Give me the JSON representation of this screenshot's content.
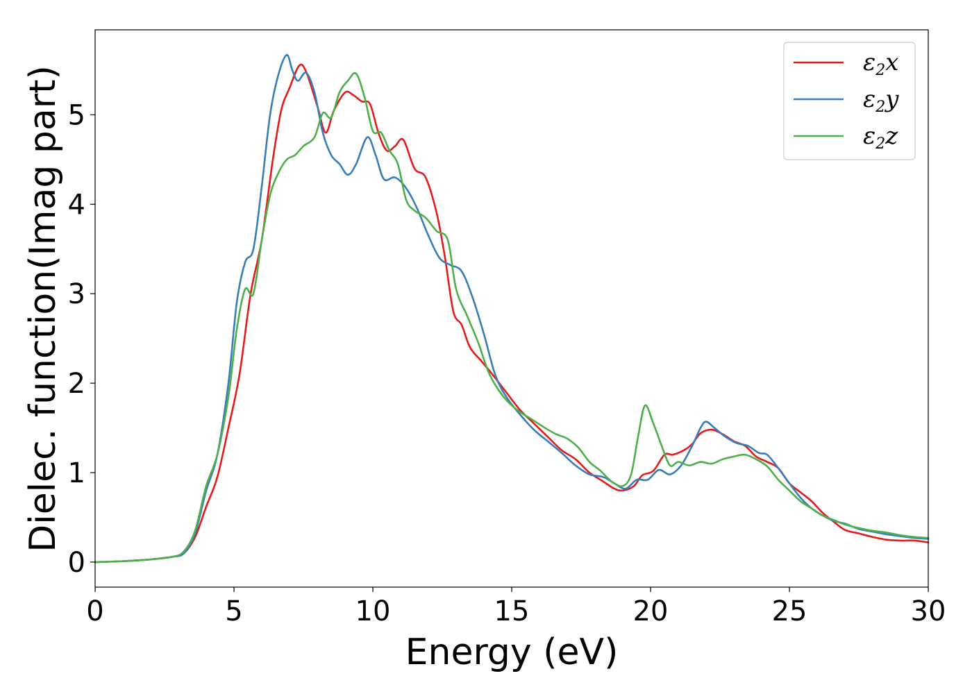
{
  "chart_data": {
    "type": "line",
    "xlabel": "Energy (eV)",
    "ylabel": "Dielec. function(Imag part)",
    "xlim": [
      0,
      30
    ],
    "ylim": [
      -0.28,
      5.95
    ],
    "xticks": [
      0,
      5,
      10,
      15,
      20,
      25,
      30
    ],
    "yticks": [
      0,
      1,
      2,
      3,
      4,
      5
    ],
    "grid": false,
    "legend_position": "top-right",
    "series": [
      {
        "name": "ε2x",
        "legend": {
          "base": "ε",
          "sub": "2",
          "suffix": "x"
        },
        "color": "#e41a1c",
        "points": [
          [
            0,
            0
          ],
          [
            1,
            0.01
          ],
          [
            2,
            0.03
          ],
          [
            2.8,
            0.06
          ],
          [
            3.2,
            0.1
          ],
          [
            3.6,
            0.28
          ],
          [
            4.0,
            0.62
          ],
          [
            4.4,
            0.95
          ],
          [
            4.8,
            1.5
          ],
          [
            5.2,
            2.1
          ],
          [
            5.6,
            3.0
          ],
          [
            6.0,
            3.6
          ],
          [
            6.4,
            4.5
          ],
          [
            6.7,
            5.05
          ],
          [
            7.0,
            5.3
          ],
          [
            7.35,
            5.55
          ],
          [
            7.6,
            5.48
          ],
          [
            8.0,
            5.1
          ],
          [
            8.3,
            4.8
          ],
          [
            8.6,
            5.05
          ],
          [
            9.0,
            5.25
          ],
          [
            9.3,
            5.22
          ],
          [
            9.6,
            5.15
          ],
          [
            9.9,
            5.12
          ],
          [
            10.2,
            4.8
          ],
          [
            10.5,
            4.6
          ],
          [
            10.8,
            4.65
          ],
          [
            11.1,
            4.72
          ],
          [
            11.5,
            4.4
          ],
          [
            11.9,
            4.3
          ],
          [
            12.3,
            3.9
          ],
          [
            12.6,
            3.4
          ],
          [
            12.9,
            2.8
          ],
          [
            13.2,
            2.65
          ],
          [
            13.5,
            2.4
          ],
          [
            13.9,
            2.25
          ],
          [
            14.3,
            2.1
          ],
          [
            14.8,
            1.9
          ],
          [
            15.3,
            1.7
          ],
          [
            15.8,
            1.55
          ],
          [
            16.3,
            1.4
          ],
          [
            16.8,
            1.25
          ],
          [
            17.3,
            1.15
          ],
          [
            17.8,
            1.0
          ],
          [
            18.3,
            0.9
          ],
          [
            18.7,
            0.82
          ],
          [
            19.0,
            0.8
          ],
          [
            19.4,
            0.85
          ],
          [
            19.7,
            0.97
          ],
          [
            20.1,
            1.02
          ],
          [
            20.5,
            1.2
          ],
          [
            20.8,
            1.2
          ],
          [
            21.2,
            1.25
          ],
          [
            21.5,
            1.32
          ],
          [
            21.8,
            1.44
          ],
          [
            22.2,
            1.48
          ],
          [
            22.6,
            1.43
          ],
          [
            23.0,
            1.35
          ],
          [
            23.4,
            1.3
          ],
          [
            23.8,
            1.18
          ],
          [
            24.2,
            1.12
          ],
          [
            24.6,
            1.05
          ],
          [
            25.0,
            0.88
          ],
          [
            25.4,
            0.78
          ],
          [
            25.8,
            0.68
          ],
          [
            26.2,
            0.55
          ],
          [
            26.6,
            0.45
          ],
          [
            27.0,
            0.36
          ],
          [
            27.5,
            0.32
          ],
          [
            28.0,
            0.28
          ],
          [
            28.5,
            0.25
          ],
          [
            29.0,
            0.24
          ],
          [
            29.5,
            0.24
          ],
          [
            30.0,
            0.22
          ]
        ]
      },
      {
        "name": "ε2y",
        "legend": {
          "base": "ε",
          "sub": "2",
          "suffix": "y"
        },
        "color": "#377eb8",
        "points": [
          [
            0,
            0
          ],
          [
            1,
            0.01
          ],
          [
            2,
            0.03
          ],
          [
            2.8,
            0.06
          ],
          [
            3.2,
            0.1
          ],
          [
            3.6,
            0.32
          ],
          [
            4.0,
            0.8
          ],
          [
            4.4,
            1.2
          ],
          [
            4.8,
            2.0
          ],
          [
            5.1,
            2.9
          ],
          [
            5.4,
            3.35
          ],
          [
            5.7,
            3.5
          ],
          [
            6.0,
            4.2
          ],
          [
            6.3,
            5.0
          ],
          [
            6.6,
            5.45
          ],
          [
            6.9,
            5.67
          ],
          [
            7.1,
            5.5
          ],
          [
            7.3,
            5.38
          ],
          [
            7.6,
            5.47
          ],
          [
            7.9,
            5.25
          ],
          [
            8.2,
            4.8
          ],
          [
            8.5,
            4.55
          ],
          [
            8.8,
            4.45
          ],
          [
            9.1,
            4.33
          ],
          [
            9.4,
            4.45
          ],
          [
            9.8,
            4.75
          ],
          [
            10.1,
            4.55
          ],
          [
            10.4,
            4.28
          ],
          [
            10.8,
            4.3
          ],
          [
            11.2,
            4.18
          ],
          [
            11.6,
            3.95
          ],
          [
            12.0,
            3.65
          ],
          [
            12.4,
            3.4
          ],
          [
            12.8,
            3.32
          ],
          [
            13.2,
            3.25
          ],
          [
            13.6,
            2.95
          ],
          [
            14.0,
            2.55
          ],
          [
            14.4,
            2.1
          ],
          [
            14.8,
            1.85
          ],
          [
            15.3,
            1.65
          ],
          [
            15.8,
            1.48
          ],
          [
            16.3,
            1.35
          ],
          [
            16.8,
            1.22
          ],
          [
            17.3,
            1.08
          ],
          [
            17.8,
            0.98
          ],
          [
            18.3,
            0.95
          ],
          [
            18.7,
            0.88
          ],
          [
            19.1,
            0.82
          ],
          [
            19.5,
            0.92
          ],
          [
            19.9,
            0.92
          ],
          [
            20.3,
            1.03
          ],
          [
            20.7,
            0.98
          ],
          [
            21.1,
            1.08
          ],
          [
            21.5,
            1.3
          ],
          [
            21.8,
            1.5
          ],
          [
            22.0,
            1.57
          ],
          [
            22.3,
            1.5
          ],
          [
            22.7,
            1.4
          ],
          [
            23.1,
            1.33
          ],
          [
            23.5,
            1.3
          ],
          [
            23.9,
            1.22
          ],
          [
            24.2,
            1.2
          ],
          [
            24.6,
            1.05
          ],
          [
            25.0,
            0.88
          ],
          [
            25.4,
            0.72
          ],
          [
            25.8,
            0.6
          ],
          [
            26.2,
            0.52
          ],
          [
            26.6,
            0.46
          ],
          [
            27.0,
            0.43
          ],
          [
            27.5,
            0.37
          ],
          [
            28.0,
            0.34
          ],
          [
            28.5,
            0.31
          ],
          [
            29.0,
            0.29
          ],
          [
            29.5,
            0.27
          ],
          [
            30.0,
            0.26
          ]
        ]
      },
      {
        "name": "ε2z",
        "legend": {
          "base": "ε",
          "sub": "2",
          "suffix": "z"
        },
        "color": "#4daf4a",
        "points": [
          [
            0,
            0
          ],
          [
            1,
            0.01
          ],
          [
            2,
            0.03
          ],
          [
            2.8,
            0.06
          ],
          [
            3.2,
            0.12
          ],
          [
            3.6,
            0.35
          ],
          [
            4.0,
            0.85
          ],
          [
            4.4,
            1.2
          ],
          [
            4.8,
            1.85
          ],
          [
            5.1,
            2.6
          ],
          [
            5.4,
            3.05
          ],
          [
            5.7,
            3.0
          ],
          [
            6.0,
            3.6
          ],
          [
            6.3,
            4.1
          ],
          [
            6.6,
            4.35
          ],
          [
            6.9,
            4.5
          ],
          [
            7.2,
            4.55
          ],
          [
            7.5,
            4.65
          ],
          [
            7.9,
            4.75
          ],
          [
            8.2,
            5.02
          ],
          [
            8.5,
            4.97
          ],
          [
            8.8,
            5.25
          ],
          [
            9.1,
            5.38
          ],
          [
            9.4,
            5.46
          ],
          [
            9.7,
            5.2
          ],
          [
            10.0,
            4.82
          ],
          [
            10.3,
            4.8
          ],
          [
            10.6,
            4.6
          ],
          [
            10.9,
            4.45
          ],
          [
            11.2,
            4.05
          ],
          [
            11.5,
            3.93
          ],
          [
            11.9,
            3.85
          ],
          [
            12.3,
            3.7
          ],
          [
            12.7,
            3.6
          ],
          [
            13.0,
            3.05
          ],
          [
            13.4,
            2.75
          ],
          [
            13.8,
            2.45
          ],
          [
            14.2,
            2.1
          ],
          [
            14.7,
            1.85
          ],
          [
            15.2,
            1.7
          ],
          [
            15.7,
            1.6
          ],
          [
            16.2,
            1.5
          ],
          [
            16.6,
            1.43
          ],
          [
            17.0,
            1.38
          ],
          [
            17.4,
            1.28
          ],
          [
            17.8,
            1.12
          ],
          [
            18.2,
            1.02
          ],
          [
            18.6,
            0.9
          ],
          [
            19.0,
            0.85
          ],
          [
            19.3,
            0.98
          ],
          [
            19.55,
            1.4
          ],
          [
            19.8,
            1.75
          ],
          [
            20.1,
            1.55
          ],
          [
            20.4,
            1.3
          ],
          [
            20.7,
            1.08
          ],
          [
            21.0,
            1.12
          ],
          [
            21.4,
            1.08
          ],
          [
            21.8,
            1.12
          ],
          [
            22.2,
            1.1
          ],
          [
            22.6,
            1.15
          ],
          [
            23.0,
            1.18
          ],
          [
            23.4,
            1.2
          ],
          [
            23.8,
            1.15
          ],
          [
            24.2,
            1.07
          ],
          [
            24.6,
            0.92
          ],
          [
            25.0,
            0.8
          ],
          [
            25.4,
            0.68
          ],
          [
            25.8,
            0.6
          ],
          [
            26.2,
            0.52
          ],
          [
            26.6,
            0.47
          ],
          [
            27.0,
            0.42
          ],
          [
            27.5,
            0.38
          ],
          [
            28.0,
            0.35
          ],
          [
            28.5,
            0.33
          ],
          [
            29.0,
            0.3
          ],
          [
            29.5,
            0.28
          ],
          [
            30.0,
            0.27
          ]
        ]
      }
    ]
  }
}
